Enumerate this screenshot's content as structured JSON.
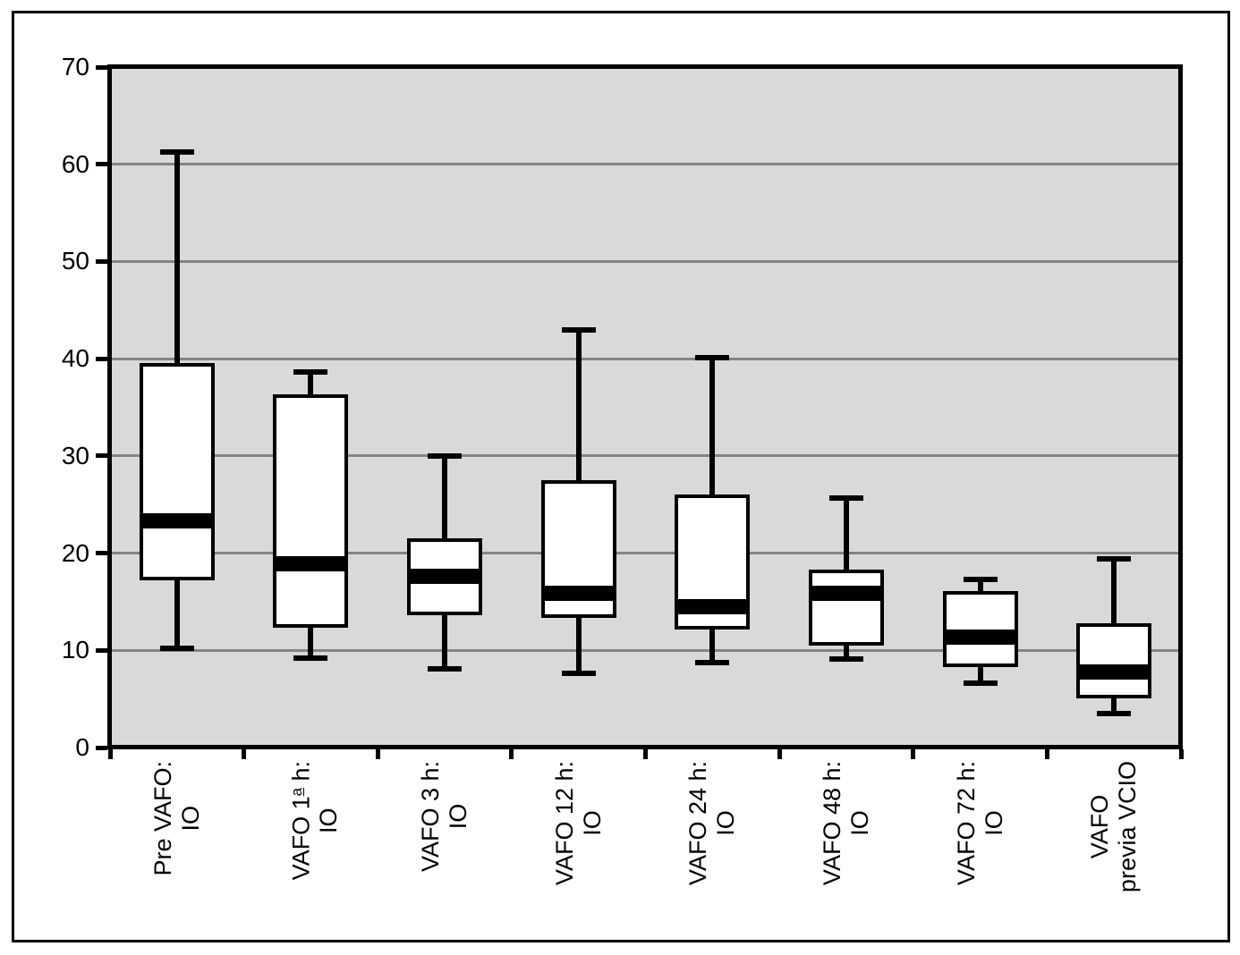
{
  "figure": {
    "background": "#ffffff",
    "border_color": "#000000"
  },
  "chart_data": {
    "type": "boxplot",
    "title": "",
    "xlabel": "",
    "ylabel": "",
    "ylim": [
      0,
      70
    ],
    "yticks": [
      0,
      10,
      20,
      30,
      40,
      50,
      60,
      70
    ],
    "grid": true,
    "legend": false,
    "plot_background": "#d9d9d9",
    "gridline_color": "#848484",
    "box_fill": "#ffffff",
    "line_color": "#000000",
    "categories": [
      "Pre VAFO: IO",
      "VAFO 1ª h: IO",
      "VAFO 3 h: IO",
      "VAFO 12 h: IO",
      "VAFO 24 h: IO",
      "VAFO 48 h: IO",
      "VAFO 72 h: IO",
      "VAFO previa VCIO"
    ],
    "boxes": [
      {
        "label_lines": [
          "Pre VAFO:",
          "IO"
        ],
        "whisker_low": 10.2,
        "q1": 17.4,
        "median": 23.3,
        "q3": 39.3,
        "whisker_high": 61.3
      },
      {
        "label_lines": [
          "VAFO 1ª h:",
          "IO"
        ],
        "whisker_low": 9.2,
        "q1": 12.6,
        "median": 18.9,
        "q3": 36.1,
        "whisker_high": 38.6
      },
      {
        "label_lines": [
          "VAFO 3 h:",
          "IO"
        ],
        "whisker_low": 8.1,
        "q1": 13.8,
        "median": 17.6,
        "q3": 21.3,
        "whisker_high": 30.0
      },
      {
        "label_lines": [
          "VAFO 12 h:",
          "IO"
        ],
        "whisker_low": 7.6,
        "q1": 13.6,
        "median": 15.9,
        "q3": 27.3,
        "whisker_high": 43.0
      },
      {
        "label_lines": [
          "VAFO 24 h:",
          "IO"
        ],
        "whisker_low": 8.7,
        "q1": 12.4,
        "median": 14.5,
        "q3": 25.8,
        "whisker_high": 40.1
      },
      {
        "label_lines": [
          "VAFO 48 h:",
          "IO"
        ],
        "whisker_low": 9.1,
        "q1": 10.7,
        "median": 15.9,
        "q3": 18.1,
        "whisker_high": 25.7
      },
      {
        "label_lines": [
          "VAFO 72 h:",
          "IO"
        ],
        "whisker_low": 6.6,
        "q1": 8.5,
        "median": 11.4,
        "q3": 15.9,
        "whisker_high": 17.3
      },
      {
        "label_lines": [
          "VAFO",
          "previa VCIO"
        ],
        "whisker_low": 3.5,
        "q1": 5.3,
        "median": 7.8,
        "q3": 12.6,
        "whisker_high": 19.4
      }
    ]
  }
}
